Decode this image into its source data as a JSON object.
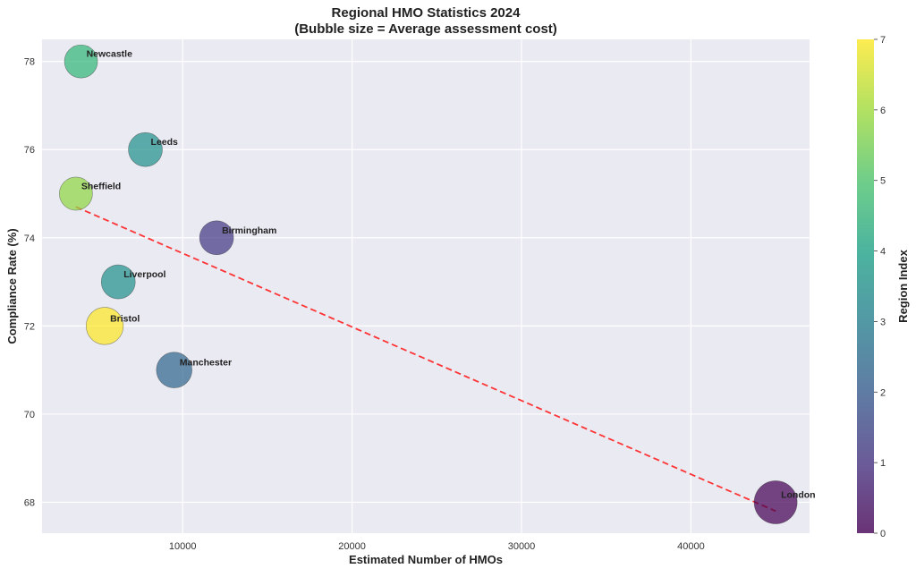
{
  "chart_data": {
    "type": "scatter",
    "title": "Regional HMO Statistics 2024",
    "subtitle": "(Bubble size = Average assessment cost)",
    "xlabel": "Estimated Number of HMOs",
    "ylabel": "Compliance Rate (%)",
    "xlim": [
      1700,
      47000
    ],
    "ylim": [
      67.3,
      78.5
    ],
    "xticks": [
      10000,
      20000,
      30000,
      40000
    ],
    "xtick_labels": [
      "10000",
      "20000",
      "30000",
      "40000"
    ],
    "yticks": [
      68,
      70,
      72,
      74,
      76,
      78
    ],
    "ytick_labels": [
      "68",
      "70",
      "72",
      "74",
      "76",
      "78"
    ],
    "grid": true,
    "colormap": "viridis",
    "colorbar": {
      "label": "Region Index",
      "range": [
        0,
        7
      ],
      "ticks": [
        0,
        1,
        2,
        3,
        4,
        5,
        6,
        7
      ],
      "tick_labels": [
        "0",
        "1",
        "2",
        "3",
        "4",
        "5",
        "6",
        "7"
      ]
    },
    "points": [
      {
        "name": "London",
        "x": 45000,
        "y": 68,
        "region_index": 0,
        "color": "#440154",
        "relative_size": 1.6
      },
      {
        "name": "Birmingham",
        "x": 12000,
        "y": 74,
        "region_index": 1,
        "color": "#443983",
        "relative_size": 1.0
      },
      {
        "name": "Manchester",
        "x": 9500,
        "y": 71,
        "region_index": 2,
        "color": "#31688e",
        "relative_size": 1.1
      },
      {
        "name": "Leeds",
        "x": 7800,
        "y": 76,
        "region_index": 3,
        "color": "#21918c",
        "relative_size": 1.0
      },
      {
        "name": "Liverpool",
        "x": 6200,
        "y": 73,
        "region_index": 4,
        "color": "#21918c",
        "relative_size": 1.0
      },
      {
        "name": "Newcastle",
        "x": 4000,
        "y": 78,
        "region_index": 5,
        "color": "#35b779",
        "relative_size": 0.95
      },
      {
        "name": "Sheffield",
        "x": 3700,
        "y": 75,
        "region_index": 6,
        "color": "#90d743",
        "relative_size": 0.95
      },
      {
        "name": "Bristol",
        "x": 5400,
        "y": 72,
        "region_index": 7,
        "color": "#fde725",
        "relative_size": 1.2
      }
    ],
    "trend_line": {
      "x": [
        3700,
        45000
      ],
      "y": [
        74.7,
        67.8
      ],
      "color": "#ff2020",
      "style": "dashed"
    }
  }
}
